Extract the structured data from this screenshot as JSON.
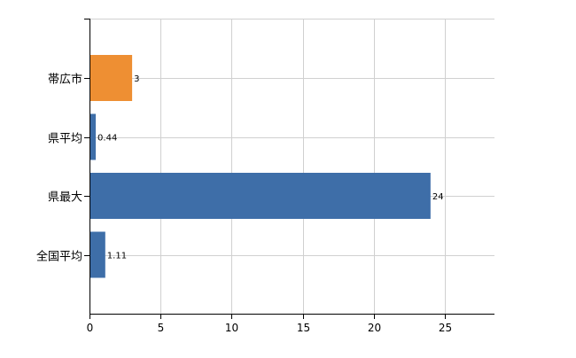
{
  "chart_data": {
    "type": "bar",
    "orientation": "horizontal",
    "categories": [
      "帯広市",
      "県平均",
      "県最大",
      "全国平均"
    ],
    "values": [
      3,
      0.44,
      24,
      1.11
    ],
    "value_labels": [
      "3",
      "0.44",
      "24",
      "1.11"
    ],
    "bar_colors": [
      "#ee8f33",
      "#3e6ea8",
      "#3e6ea8",
      "#3e6ea8"
    ],
    "xlim": [
      0,
      28.5
    ],
    "xticks": [
      0,
      5,
      10,
      15,
      20,
      25
    ],
    "grid": true,
    "legend": "none",
    "title": "",
    "xlabel": "",
    "ylabel": ""
  }
}
